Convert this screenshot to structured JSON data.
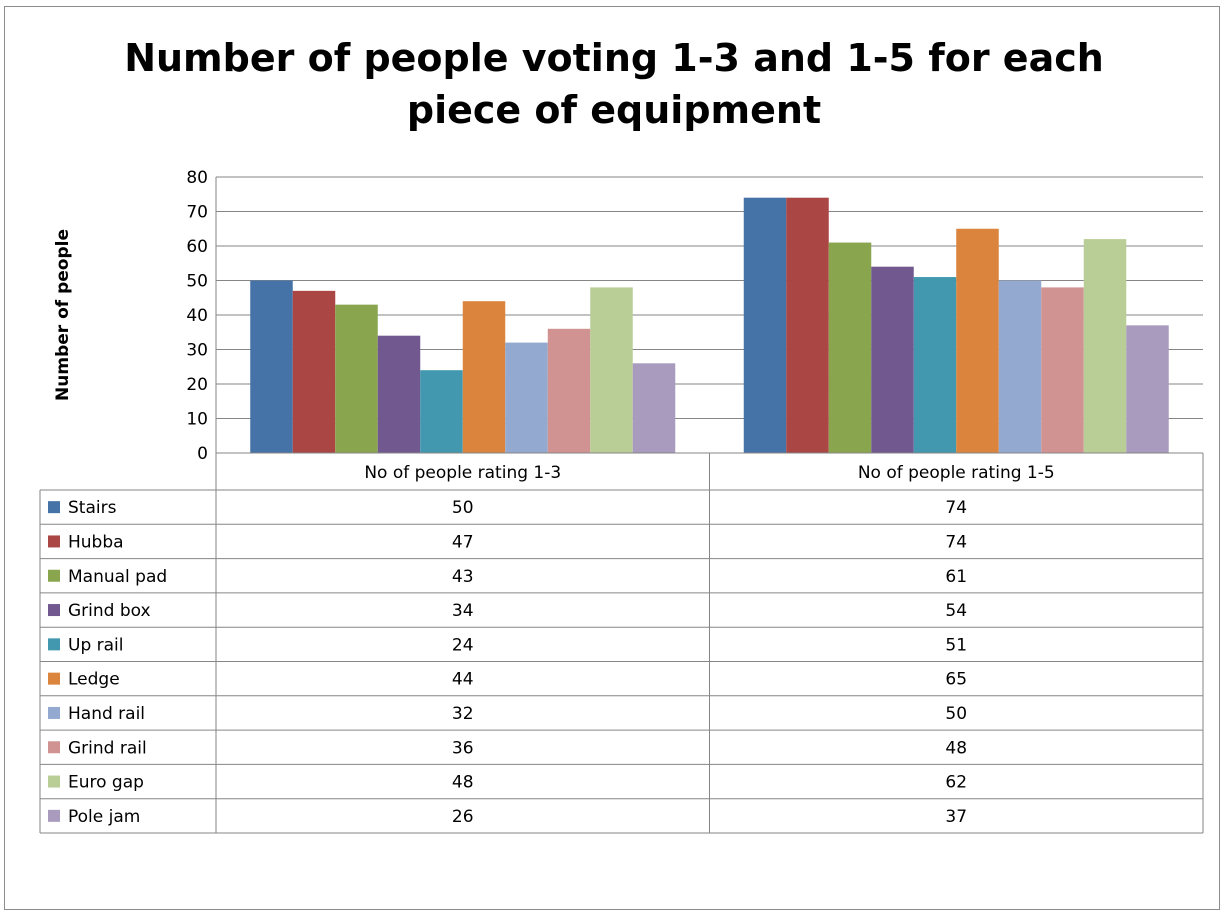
{
  "chart_data": {
    "type": "bar",
    "title": "Number of people voting 1-3 and 1-5 for each piece of equipment",
    "title_lines": [
      "Number of people voting 1-3 and 1-5 for each",
      "piece of equipment"
    ],
    "xlabel": "",
    "ylabel": "Number of people",
    "ylim": [
      0,
      80
    ],
    "yticks": [
      0,
      10,
      20,
      30,
      40,
      50,
      60,
      70,
      80
    ],
    "grid": true,
    "legend": "data-table-left",
    "categories": [
      "No of people rating 1-3",
      "No of people rating 1-5"
    ],
    "series": [
      {
        "name": "Stairs",
        "color": "#4572a7",
        "values": [
          50,
          74
        ]
      },
      {
        "name": "Hubba",
        "color": "#aa4643",
        "values": [
          47,
          74
        ]
      },
      {
        "name": "Manual pad",
        "color": "#89a54e",
        "values": [
          43,
          61
        ]
      },
      {
        "name": "Grind box",
        "color": "#71588f",
        "values": [
          34,
          54
        ]
      },
      {
        "name": "Up rail",
        "color": "#4198af",
        "values": [
          24,
          51
        ]
      },
      {
        "name": "Ledge",
        "color": "#db843d",
        "values": [
          44,
          65
        ]
      },
      {
        "name": "Hand rail",
        "color": "#93a9cf",
        "values": [
          32,
          50
        ]
      },
      {
        "name": "Grind rail",
        "color": "#d19392",
        "values": [
          36,
          48
        ]
      },
      {
        "name": "Euro gap",
        "color": "#b9cd96",
        "values": [
          48,
          62
        ]
      },
      {
        "name": "Pole jam",
        "color": "#a99bbd",
        "values": [
          26,
          37
        ]
      }
    ]
  }
}
